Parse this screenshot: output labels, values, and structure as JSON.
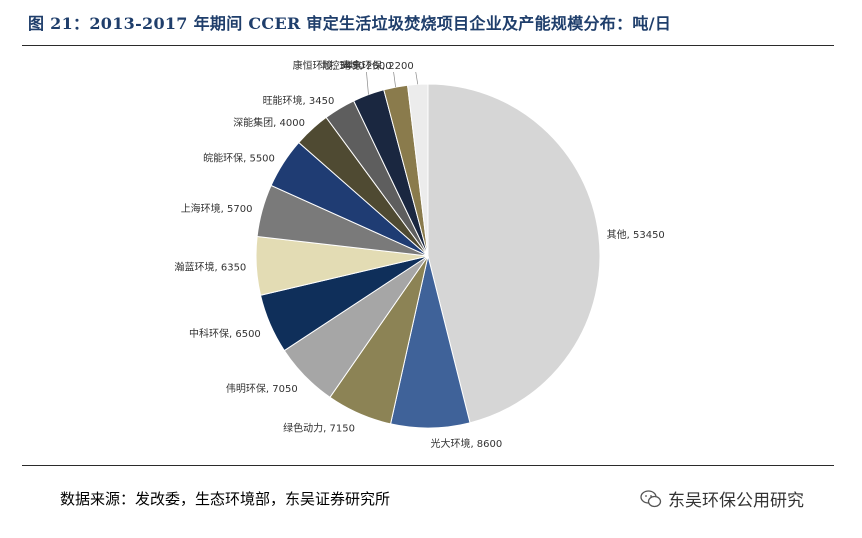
{
  "title": "图 21：2013-2017 年期间 CCER 审定生活垃圾焚烧项目企业及产能规模分布：吨/日",
  "source": "数据来源：发改委，生态环境部，东吴证券研究所",
  "watermark": "东吴环保公用研究",
  "chart_data": {
    "type": "pie",
    "title": "",
    "slices": [
      {
        "label": "其他, 53450",
        "name": "其他",
        "value": 53450,
        "color": "#d6d6d6"
      },
      {
        "label": "光大环境, 8600",
        "name": "光大环境",
        "value": 8600,
        "color": "#3f6299"
      },
      {
        "label": "绿色动力, 7150",
        "name": "绿色动力",
        "value": 7150,
        "color": "#8c8355"
      },
      {
        "label": "伟明环保, 7050",
        "name": "伟明环保",
        "value": 7050,
        "color": "#a6a6a6"
      },
      {
        "label": "中科环保, 6500",
        "name": "中科环保",
        "value": 6500,
        "color": "#0f2f5a"
      },
      {
        "label": "瀚蓝环境, 6350",
        "name": "瀚蓝环境",
        "value": 6350,
        "color": "#e3dcb4"
      },
      {
        "label": "上海环境, 5700",
        "name": "上海环境",
        "value": 5700,
        "color": "#7a7a7a"
      },
      {
        "label": "皖能环保, 5500",
        "name": "皖能环保",
        "value": 5500,
        "color": "#1f3c73"
      },
      {
        "label": "深能集团, 4000",
        "name": "深能集团",
        "value": 4000,
        "color": "#4f4a32"
      },
      {
        "label": "旺能环境, 3450",
        "name": "旺能环境",
        "value": 3450,
        "color": "#5e5e5e"
      },
      {
        "label": "康恒环境, 3450",
        "name": "康恒环境",
        "value": 3450,
        "color": "#1a2740"
      },
      {
        "label": "北控环境, 2600",
        "name": "北控环境",
        "value": 2600,
        "color": "#8a7b4c"
      },
      {
        "label": "粤丰环保, 2200",
        "name": "粤丰环保",
        "value": 2200,
        "color": "#ececec"
      }
    ]
  }
}
